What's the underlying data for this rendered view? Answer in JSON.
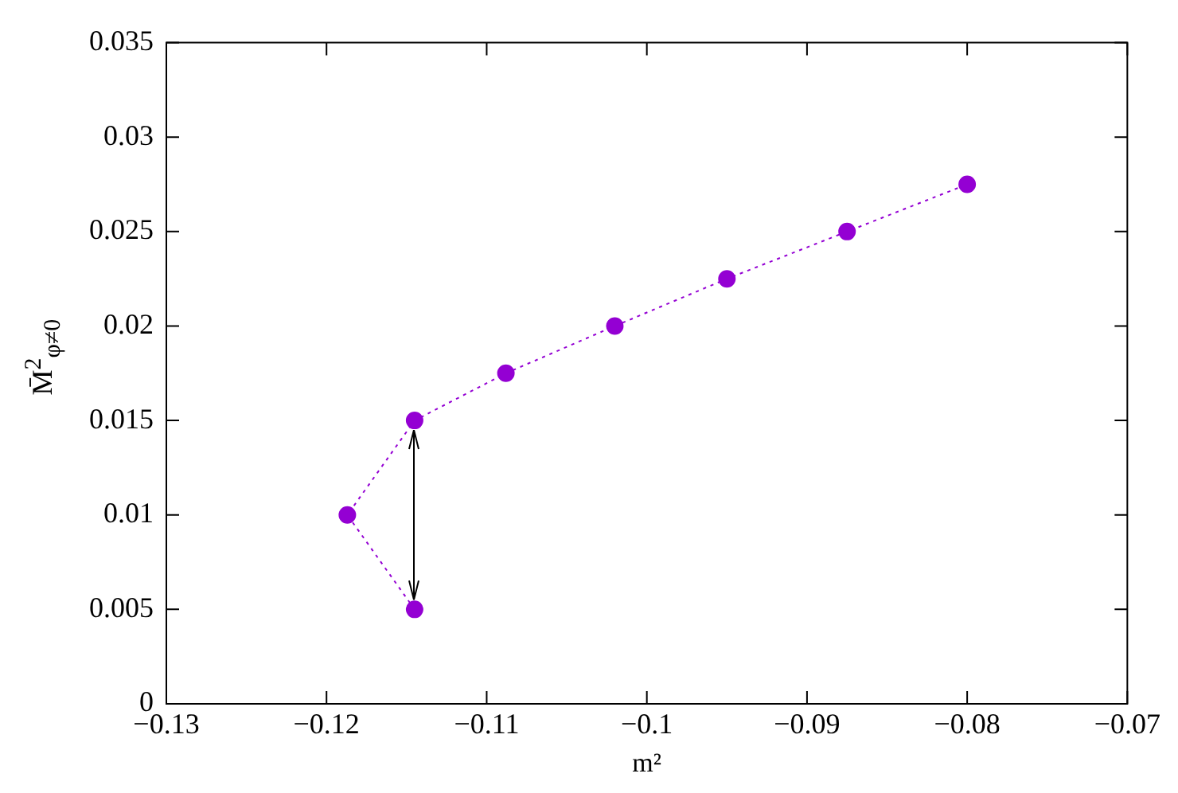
{
  "chart_data": {
    "type": "line",
    "xlabel": "m²",
    "ylabel": "M̄$^{2}$$_{φ≠0}$",
    "xlim": [
      -0.13,
      -0.07
    ],
    "xticks": [
      -0.13,
      -0.12,
      -0.11,
      -0.1,
      -0.09,
      -0.08,
      -0.07
    ],
    "ylim": [
      0,
      0.035
    ],
    "yticks": [
      0,
      0.005,
      0.01,
      0.015,
      0.02,
      0.025,
      0.03,
      0.035
    ],
    "grid": false,
    "legend": false,
    "marker": "circle",
    "line_style": "dotted",
    "series": [
      {
        "color": "#9400d3",
        "x": [
          -0.1145,
          -0.1187,
          -0.1145,
          -0.1088,
          -0.102,
          -0.095,
          -0.0875,
          -0.08
        ],
        "values": [
          0.005,
          0.01,
          0.015,
          0.0175,
          0.02,
          0.0225,
          0.025,
          0.0275
        ]
      }
    ]
  }
}
